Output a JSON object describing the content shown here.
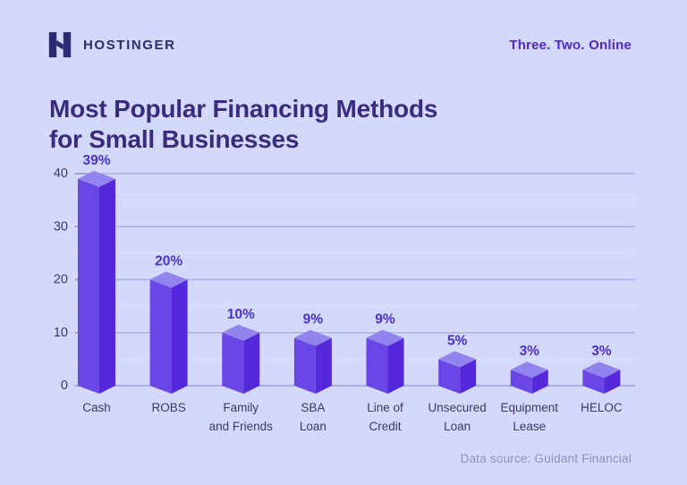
{
  "page": {
    "background": "#D3D9FA"
  },
  "header": {
    "brand": "HOSTINGER",
    "tagline": "Three. Two. Online",
    "logo_icon": "hostinger-h-icon",
    "brand_color": "#2E2A72",
    "tagline_color": "#5126D3"
  },
  "title": {
    "line1": "Most Popular Financing Methods",
    "line2": "for Small Businesses",
    "color": "#3A2B7E"
  },
  "footer": {
    "source": "Data source: Guidant Financial"
  },
  "chart_data": {
    "type": "bar",
    "style": "3d-isometric-columns",
    "title": "Most Popular Financing Methods for Small Businesses",
    "categories": [
      "Cash",
      "ROBS",
      "Family and Friends",
      "SBA Loan",
      "Line of Credit",
      "Unsecured Loan",
      "Equipment Lease",
      "HELOC"
    ],
    "category_lines": [
      [
        "Cash"
      ],
      [
        "ROBS"
      ],
      [
        "Family",
        "and Friends"
      ],
      [
        "SBA",
        "Loan"
      ],
      [
        "Line of",
        "Credit"
      ],
      [
        "Unsecured",
        "Loan"
      ],
      [
        "Equipment",
        "Lease"
      ],
      [
        "HELOC"
      ]
    ],
    "values": [
      39,
      20,
      10,
      9,
      9,
      5,
      3,
      3
    ],
    "data_labels": [
      "39%",
      "20%",
      "10%",
      "9%",
      "9%",
      "5%",
      "3%",
      "3%"
    ],
    "xlabel": "",
    "ylabel": "",
    "ylim": [
      0,
      40
    ],
    "yticks": [
      0,
      10,
      20,
      30,
      40
    ],
    "gridline_interval": 5,
    "grid": true,
    "legend": false,
    "colors": {
      "bar_left_face": "#6946E5",
      "bar_right_face": "#5628DB",
      "bar_top_face": "#9184EF",
      "grid_minor": "#DDE1FB",
      "grid_major": "#A9AFE7",
      "axis_line": "#9FA6DC",
      "tick": "#8F96CC",
      "value_label": "#4B2FD1",
      "axis_text": "#3D3769",
      "category_text": "#3D3769"
    }
  }
}
